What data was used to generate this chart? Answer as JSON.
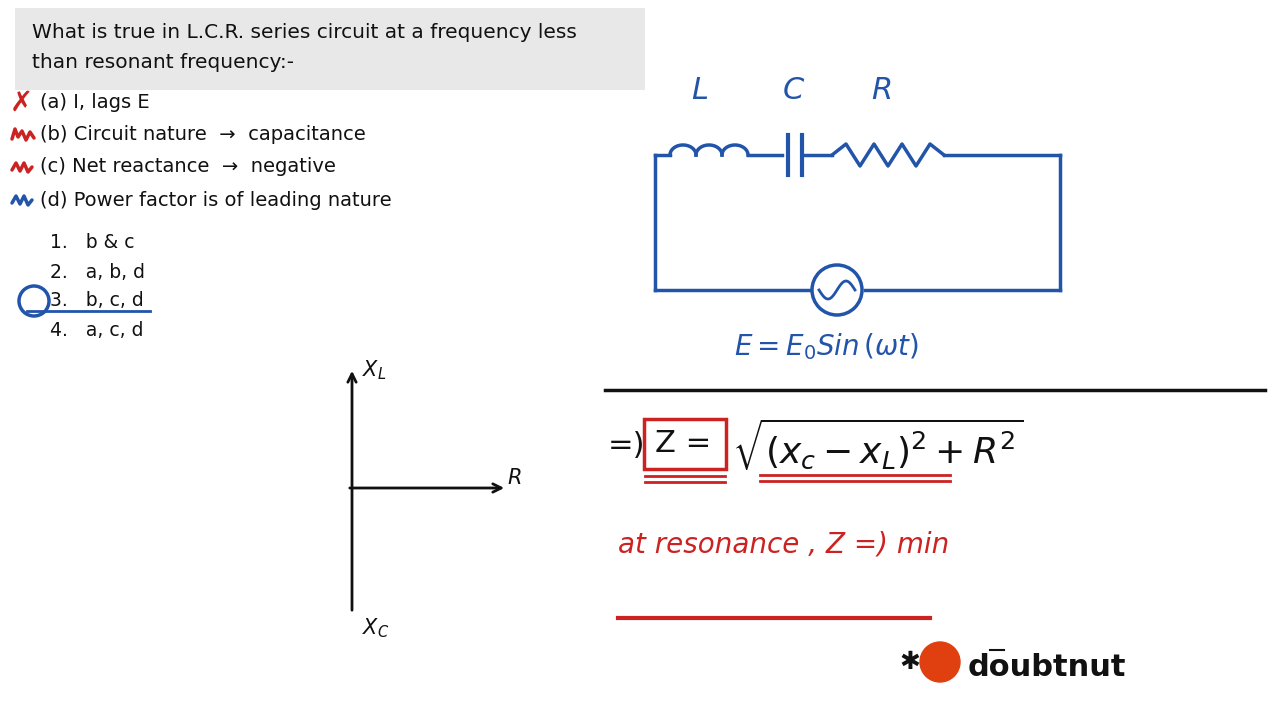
{
  "bg_color": "#ffffff",
  "title_bg": "#e8e8e8",
  "title_line1": "What is true in L.C.R. series circuit at a frequency less",
  "title_line2": "than resonant frequency:-",
  "option_a": "(a) I, lags E",
  "option_b": "(b) Circuit nature  →  capacitance",
  "option_c": "(c) Net reactance  →  negative",
  "option_d": "(d) Power factor is of leading nature",
  "answer1": "1.   b & c",
  "answer2": "2.   a, b, d",
  "answer3": "3.   b, c, d",
  "answer4": "4.   a, c, d",
  "blue_color": "#2255aa",
  "red_color": "#cc2222",
  "black_color": "#111111",
  "white_color": "#ffffff",
  "orange_red": "#cc3300"
}
